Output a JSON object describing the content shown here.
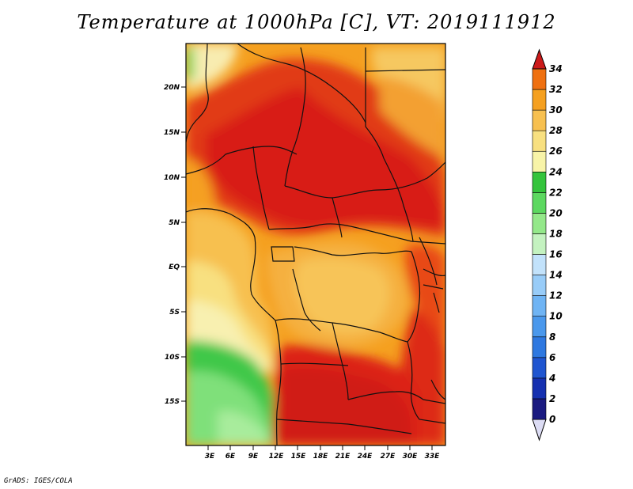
{
  "title": "Temperature at 1000hPa [C], VT: 2019111912",
  "credit": "GrADS: IGES/COLA",
  "map": {
    "lat_labels": [
      "20N",
      "15N",
      "10N",
      "5N",
      "EQ",
      "5S",
      "10S",
      "15S"
    ],
    "lon_labels": [
      "3E",
      "6E",
      "9E",
      "12E",
      "15E",
      "18E",
      "21E",
      "24E",
      "27E",
      "30E",
      "33E"
    ]
  },
  "colorbar": {
    "levels": [
      "0",
      "2",
      "4",
      "6",
      "8",
      "10",
      "12",
      "14",
      "16",
      "18",
      "20",
      "22",
      "24",
      "26",
      "28",
      "30",
      "32",
      "34"
    ],
    "colors": [
      "#1a1a80",
      "#1530b0",
      "#1f55d0",
      "#2e78e0",
      "#4a98ec",
      "#6fb4f4",
      "#98ccf8",
      "#c2e2fb",
      "#c4f2c0",
      "#94e88a",
      "#5cd860",
      "#34c43c",
      "#f8f4a8",
      "#f8e080",
      "#f7c050",
      "#f5a020",
      "#ef7010",
      "#e43a10",
      "#cc1a1a"
    ],
    "below_color": "#dcdcf4",
    "above_color": "#cc1a1a"
  }
}
